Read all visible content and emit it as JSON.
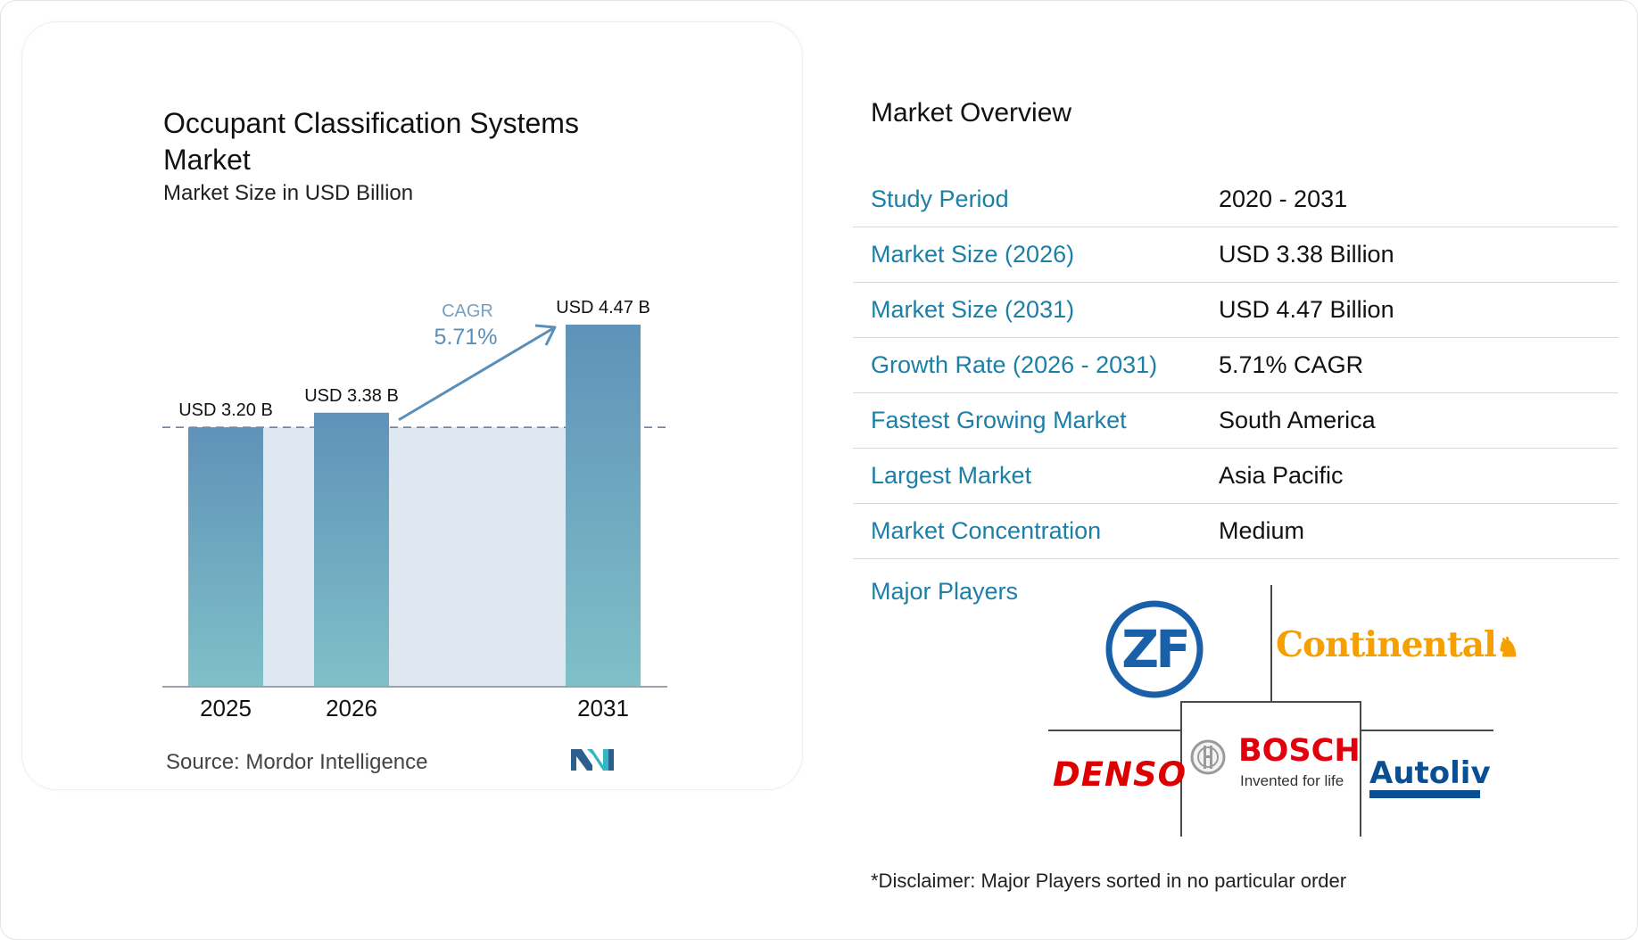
{
  "chart": {
    "title": "Occupant Classification Systems Market",
    "subtitle": "Market Size in USD Billion",
    "source": "Source:  Mordor Intelligence",
    "cagr_label": "CAGR",
    "cagr_value": "5.71%"
  },
  "chart_data": {
    "type": "bar",
    "categories": [
      "2025",
      "2026",
      "2031"
    ],
    "values": [
      3.2,
      3.38,
      4.47
    ],
    "data_labels": [
      "USD 3.20 B",
      "USD 3.38 B",
      "USD 4.47 B"
    ],
    "title": "Occupant Classification Systems Market",
    "subtitle": "Market Size in USD Billion",
    "annotation": "CAGR 5.71%",
    "grid": false,
    "legend": "none",
    "colors": {
      "bar_top": "#5f92b8",
      "bar_bottom": "#7fc0c8",
      "band": "#dfe8f1",
      "arrow": "#5b8fb7"
    }
  },
  "overview": {
    "title": "Market Overview",
    "rows": [
      {
        "label": "Study Period",
        "value": "2020 - 2031"
      },
      {
        "label": "Market Size (2026)",
        "value": "USD 3.38 Billion"
      },
      {
        "label": "Market Size (2031)",
        "value": "USD 4.47 Billion"
      },
      {
        "label": "Growth Rate (2026 - 2031)",
        "value": "5.71% CAGR"
      },
      {
        "label": "Fastest Growing Market",
        "value": "South America"
      },
      {
        "label": "Largest Market",
        "value": "Asia Pacific"
      },
      {
        "label": "Market Concentration",
        "value": "Medium"
      }
    ],
    "players_label": "Major Players",
    "players": {
      "zf": "ZF",
      "continental": "Continental",
      "denso": "DENSO",
      "bosch": "BOSCH",
      "bosch_tagline": "Invented for life",
      "autoliv": "Autoliv"
    },
    "disclaimer": "*Disclaimer: Major Players sorted in no particular order"
  }
}
